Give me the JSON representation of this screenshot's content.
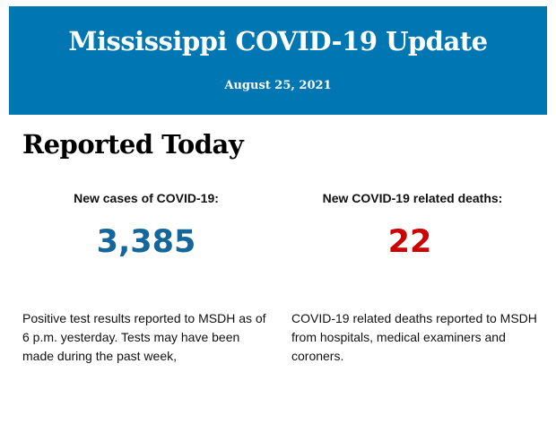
{
  "header": {
    "title": "Mississippi COVID-19 Update",
    "date": "August 25, 2021"
  },
  "section_title": "Reported Today",
  "cases": {
    "label": "New cases of COVID-19:",
    "value": "3,385",
    "color": "#15669a",
    "description": "Positive test results reported to MSDH as of 6 p.m. yesterday. Tests may have been made during the past week,"
  },
  "deaths": {
    "label": "New COVID-19 related deaths:",
    "value": "22",
    "color": "#cc0000",
    "description": "COVID-19 related deaths reported to MSDH from hospitals, medical examiners and coroners."
  }
}
